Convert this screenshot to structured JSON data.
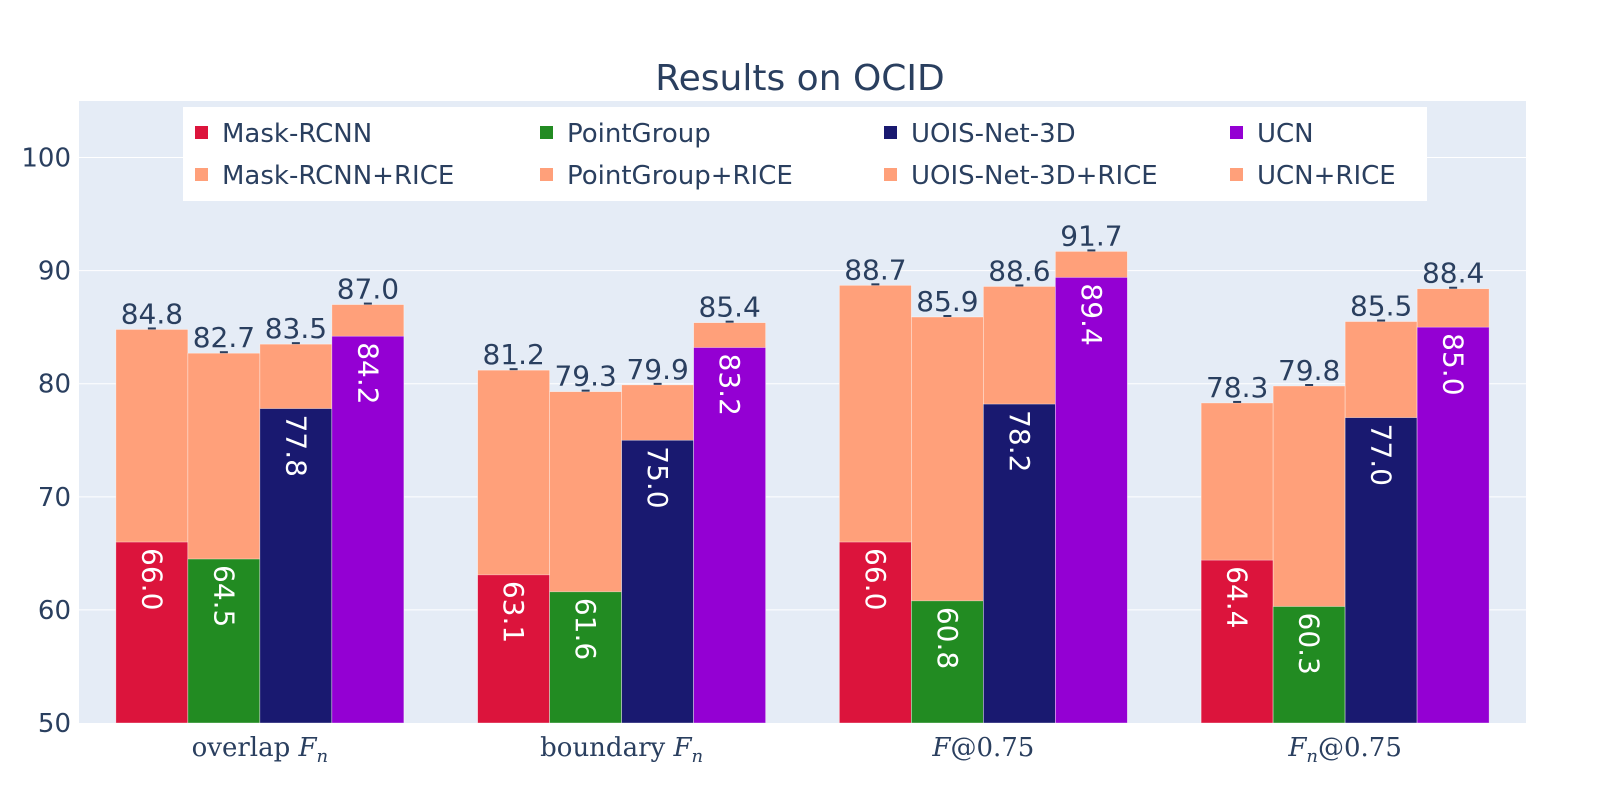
{
  "chart_data": {
    "type": "bar",
    "title": "Results on OCID",
    "categories": [
      "overlap Fn",
      "boundary Fn",
      "F@0.75",
      "Fn@0.75"
    ],
    "category_labels": [
      {
        "pre": "overlap ",
        "main": "F",
        "sub": "n",
        "post": ""
      },
      {
        "pre": "boundary ",
        "main": "F",
        "sub": "n",
        "post": ""
      },
      {
        "pre": "",
        "main": "F",
        "sub": "",
        "post": "@0.75"
      },
      {
        "pre": "",
        "main": "F",
        "sub": "n",
        "post": "@0.75"
      }
    ],
    "ylim": [
      50,
      105
    ],
    "yticks": [
      50,
      60,
      70,
      80,
      90,
      100
    ],
    "grid": true,
    "legend_position": "top",
    "series": [
      {
        "name": "Mask-RCNN",
        "color": "#dc143c",
        "values": [
          66.0,
          63.1,
          66.0,
          64.4
        ],
        "labels": [
          "66.0",
          "63.1",
          "66.0",
          "64.4"
        ]
      },
      {
        "name": "PointGroup",
        "color": "#228b22",
        "values": [
          64.5,
          61.6,
          60.8,
          60.3
        ],
        "labels": [
          "64.5",
          "61.6",
          "60.8",
          "60.3"
        ]
      },
      {
        "name": "UOIS-Net-3D",
        "color": "#191970",
        "values": [
          77.8,
          75.0,
          78.2,
          77.0
        ],
        "labels": [
          "77.8",
          "75.0",
          "78.2",
          "77.0"
        ]
      },
      {
        "name": "UCN",
        "color": "#9400d3",
        "values": [
          84.2,
          83.2,
          89.4,
          85.0
        ],
        "labels": [
          "84.2",
          "83.2",
          "89.4",
          "85.0"
        ]
      }
    ],
    "rice_series": [
      {
        "name": "Mask-RCNN+RICE",
        "color": "#ffa07a",
        "values": [
          84.8,
          81.2,
          88.7,
          78.3
        ],
        "labels": [
          "84.8",
          "81.2",
          "88.7",
          "78.3"
        ]
      },
      {
        "name": "PointGroup+RICE",
        "color": "#ffa07a",
        "values": [
          82.7,
          79.3,
          85.9,
          79.8
        ],
        "labels": [
          "82.7",
          "79.3",
          "85.9",
          "79.8"
        ]
      },
      {
        "name": "UOIS-Net-3D+RICE",
        "color": "#ffa07a",
        "values": [
          83.5,
          79.9,
          88.6,
          85.5
        ],
        "labels": [
          "83.5",
          "79.9",
          "88.6",
          "85.5"
        ]
      },
      {
        "name": "UCN+RICE",
        "color": "#ffa07a",
        "values": [
          87.0,
          85.4,
          91.7,
          88.4
        ],
        "labels": [
          "87.0",
          "85.4",
          "91.7",
          "88.4"
        ]
      }
    ],
    "legend_order": [
      "Mask-RCNN",
      "PointGroup",
      "UOIS-Net-3D",
      "UCN",
      "Mask-RCNN+RICE",
      "PointGroup+RICE",
      "UOIS-Net-3D+RICE",
      "UCN+RICE"
    ],
    "colors": {
      "plot_bg": "#e5ecf6",
      "grid": "#ffffff",
      "text": "#2a3f5f",
      "legend_bg": "#ffffff"
    }
  }
}
